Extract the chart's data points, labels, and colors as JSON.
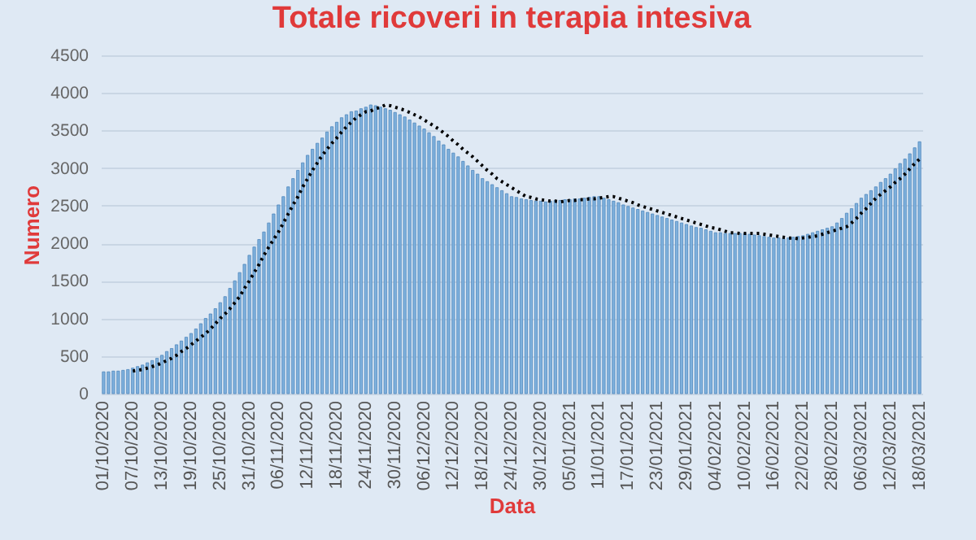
{
  "chart_data": {
    "type": "bar",
    "title": "Totale ricoveri in terapia intesiva",
    "xlabel": "Data",
    "ylabel": "Numero",
    "categories": [
      "01/10/2020",
      null,
      null,
      null,
      null,
      null,
      "07/10/2020",
      null,
      null,
      null,
      null,
      null,
      "13/10/2020",
      null,
      null,
      null,
      null,
      null,
      "19/10/2020",
      null,
      null,
      null,
      null,
      null,
      "25/10/2020",
      null,
      null,
      null,
      null,
      null,
      "31/10/2020",
      null,
      null,
      null,
      null,
      null,
      "06/11/2020",
      null,
      null,
      null,
      null,
      null,
      "12/11/2020",
      null,
      null,
      null,
      null,
      null,
      "18/11/2020",
      null,
      null,
      null,
      null,
      null,
      "24/11/2020",
      null,
      null,
      null,
      null,
      null,
      "30/11/2020",
      null,
      null,
      null,
      null,
      null,
      "06/12/2020",
      null,
      null,
      null,
      null,
      null,
      "12/12/2020",
      null,
      null,
      null,
      null,
      null,
      "18/12/2020",
      null,
      null,
      null,
      null,
      null,
      "24/12/2020",
      null,
      null,
      null,
      null,
      null,
      "30/12/2020",
      null,
      null,
      null,
      null,
      null,
      "05/01/2021",
      null,
      null,
      null,
      null,
      null,
      "11/01/2021",
      null,
      null,
      null,
      null,
      null,
      "17/01/2021",
      null,
      null,
      null,
      null,
      null,
      "23/01/2021",
      null,
      null,
      null,
      null,
      null,
      "29/01/2021",
      null,
      null,
      null,
      null,
      null,
      "04/02/2021",
      null,
      null,
      null,
      null,
      null,
      "10/02/2021",
      null,
      null,
      null,
      null,
      null,
      "16/02/2021",
      null,
      null,
      null,
      null,
      null,
      "22/02/2021",
      null,
      null,
      null,
      null,
      null,
      "28/02/2021",
      null,
      null,
      null,
      null,
      null,
      "06/03/2021",
      null,
      null,
      null,
      null,
      null,
      "12/03/2021",
      null,
      null,
      null,
      null,
      null,
      "18/03/2021"
    ],
    "series": [
      {
        "color": "#7fb1dd",
        "values": [
          290,
          290,
          300,
          300,
          310,
          320,
          340,
          360,
          380,
          410,
          440,
          470,
          510,
          560,
          600,
          650,
          700,
          750,
          800,
          860,
          930,
          1000,
          1060,
          1130,
          1210,
          1290,
          1400,
          1500,
          1610,
          1720,
          1840,
          1950,
          2050,
          2150,
          2270,
          2390,
          2510,
          2620,
          2750,
          2860,
          2970,
          3070,
          3170,
          3250,
          3330,
          3400,
          3480,
          3550,
          3610,
          3670,
          3710,
          3750,
          3760,
          3790,
          3810,
          3840,
          3830,
          3810,
          3790,
          3770,
          3740,
          3710,
          3680,
          3640,
          3600,
          3560,
          3520,
          3470,
          3420,
          3360,
          3310,
          3250,
          3200,
          3150,
          3090,
          3030,
          2970,
          2920,
          2860,
          2820,
          2780,
          2740,
          2700,
          2660,
          2620,
          2610,
          2590,
          2580,
          2570,
          2560,
          2560,
          2550,
          2560,
          2570,
          2570,
          2580,
          2580,
          2590,
          2590,
          2600,
          2610,
          2620,
          2620,
          2600,
          2580,
          2560,
          2540,
          2510,
          2490,
          2470,
          2450,
          2430,
          2410,
          2390,
          2370,
          2350,
          2330,
          2310,
          2290,
          2270,
          2250,
          2230,
          2210,
          2200,
          2180,
          2160,
          2140,
          2140,
          2130,
          2130,
          2130,
          2130,
          2130,
          2120,
          2110,
          2100,
          2090,
          2080,
          2070,
          2070,
          2060,
          2070,
          2080,
          2090,
          2100,
          2120,
          2140,
          2160,
          2180,
          2200,
          2220,
          2270,
          2330,
          2400,
          2460,
          2530,
          2600,
          2650,
          2700,
          2750,
          2810,
          2860,
          2920,
          2990,
          3060,
          3120,
          3190,
          3270,
          3350
        ]
      },
      {
        "type": "line",
        "color": "#000000",
        "line_style": "dotted",
        "values": [
          null,
          null,
          null,
          null,
          null,
          null,
          300,
          310,
          320,
          340,
          360,
          380,
          410,
          440,
          470,
          510,
          560,
          600,
          650,
          700,
          750,
          800,
          860,
          930,
          1000,
          1060,
          1130,
          1210,
          1290,
          1400,
          1500,
          1610,
          1720,
          1840,
          1950,
          2050,
          2150,
          2270,
          2390,
          2510,
          2620,
          2750,
          2860,
          2970,
          3070,
          3170,
          3250,
          3330,
          3400,
          3480,
          3550,
          3610,
          3670,
          3710,
          3750,
          3760,
          3790,
          3810,
          3840,
          3830,
          3810,
          3790,
          3770,
          3740,
          3710,
          3680,
          3640,
          3600,
          3560,
          3520,
          3470,
          3420,
          3360,
          3310,
          3250,
          3200,
          3150,
          3090,
          3030,
          2970,
          2920,
          2860,
          2820,
          2780,
          2740,
          2700,
          2660,
          2620,
          2610,
          2590,
          2580,
          2570,
          2560,
          2560,
          2550,
          2560,
          2570,
          2570,
          2580,
          2580,
          2590,
          2590,
          2600,
          2610,
          2620,
          2620,
          2600,
          2580,
          2560,
          2540,
          2510,
          2490,
          2470,
          2450,
          2430,
          2410,
          2390,
          2370,
          2350,
          2330,
          2310,
          2290,
          2270,
          2250,
          2230,
          2210,
          2200,
          2180,
          2160,
          2140,
          2140,
          2130,
          2130,
          2130,
          2130,
          2130,
          2120,
          2110,
          2100,
          2090,
          2080,
          2070,
          2070,
          2060,
          2070,
          2080,
          2090,
          2100,
          2120,
          2140,
          2160,
          2180,
          2200,
          2220,
          2270,
          2330,
          2400,
          2460,
          2530,
          2600,
          2650,
          2700,
          2750,
          2810,
          2860,
          2920,
          2990,
          3060,
          3120
        ]
      }
    ],
    "ylim": [
      0,
      4500
    ],
    "yticks": [
      0,
      500,
      1000,
      1500,
      2000,
      2500,
      3000,
      3500,
      4000,
      4500
    ],
    "grid": "y",
    "marker": "none"
  }
}
